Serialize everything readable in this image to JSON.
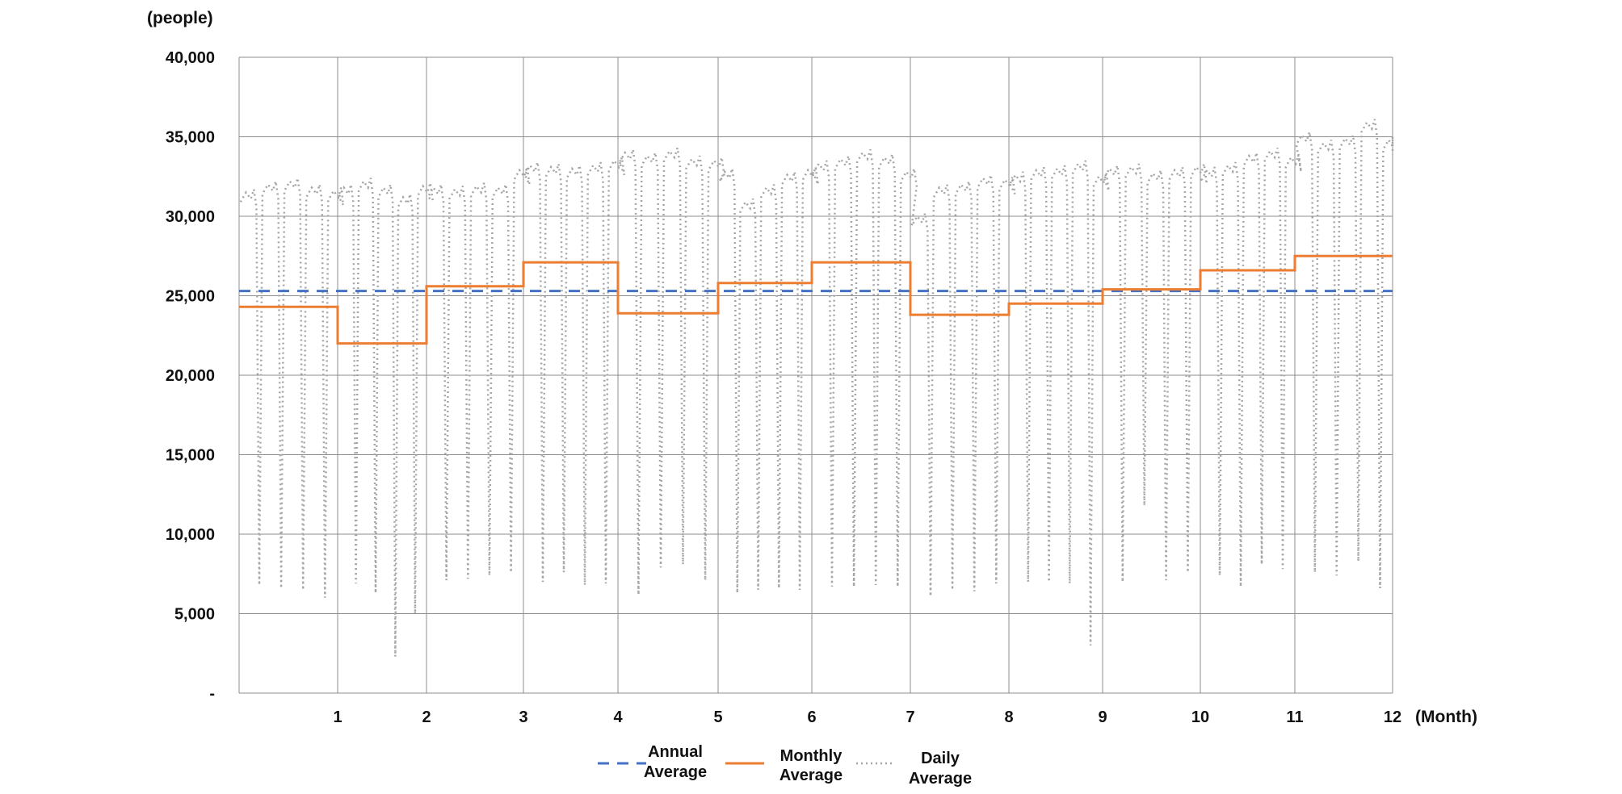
{
  "chart_data": {
    "type": "line",
    "y_unit_label": "(people)",
    "x_unit_label": "(Month)",
    "xlim": [
      0,
      12
    ],
    "ylim": [
      0,
      40000
    ],
    "x_ticks": [
      1,
      2,
      3,
      4,
      5,
      6,
      7,
      8,
      9,
      10,
      11,
      12
    ],
    "x_tick_labels": [
      "1",
      "2",
      "3",
      "4",
      "5",
      "6",
      "7",
      "8",
      "9",
      "10",
      "11",
      "12"
    ],
    "y_ticks": [
      0,
      5000,
      10000,
      15000,
      20000,
      25000,
      30000,
      35000,
      40000
    ],
    "y_tick_labels": [
      "-",
      "5,000",
      "10,000",
      "15,000",
      "20,000",
      "25,000",
      "30,000",
      "35,000",
      "40,000"
    ],
    "grid": true,
    "legend_position": "bottom",
    "series": [
      {
        "name": "Annual Average",
        "style": "dashed",
        "color": "#4472C4",
        "value": 25300
      },
      {
        "name": "Monthly Average",
        "style": "step",
        "color": "#ED7D31",
        "months": [
          1,
          2,
          3,
          4,
          5,
          6,
          7,
          8,
          9,
          10,
          11,
          12
        ],
        "values": [
          24300,
          22000,
          25600,
          27100,
          23900,
          25800,
          27100,
          23800,
          24500,
          25400,
          26600,
          27500
        ]
      },
      {
        "name": "Daily Average",
        "style": "dotted",
        "color": "#A6A6A6",
        "month_daily_profile": [
          {
            "month": 1,
            "weekday": [
              31500,
              32000,
              32200,
              31800,
              31600
            ],
            "weekend_low": [
              6800,
              6600,
              6500,
              6000
            ]
          },
          {
            "month": 2,
            "weekday": [
              31800,
              32200,
              31800,
              31200,
              31900
            ],
            "weekend_low": [
              6900,
              6300,
              2300,
              5000
            ]
          },
          {
            "month": 3,
            "weekday": [
              31800,
              31700,
              31900,
              31800,
              32900
            ],
            "weekend_low": [
              7100,
              7200,
              7400,
              7600
            ]
          },
          {
            "month": 4,
            "weekday": [
              33200,
              33100,
              33000,
              33200,
              33500
            ],
            "weekend_low": [
              7000,
              7600,
              6800,
              6900
            ]
          },
          {
            "month": 5,
            "weekday": [
              34000,
              33800,
              34100,
              33600,
              33500
            ],
            "weekend_low": [
              6200,
              7900,
              8100,
              7100
            ]
          },
          {
            "month": 6,
            "weekday": [
              32800,
              30900,
              31800,
              32600,
              32900
            ],
            "weekend_low": [
              6300,
              6500,
              6600,
              6500
            ]
          },
          {
            "month": 7,
            "weekday": [
              33300,
              33600,
              34000,
              33700,
              32800
            ],
            "weekend_low": [
              6700,
              6700,
              6800,
              6700
            ]
          },
          {
            "month": 8,
            "weekday": [
              30000,
              31800,
              32000,
              32400,
              32300
            ],
            "weekend_low": [
              6100,
              6500,
              6400,
              6900
            ]
          },
          {
            "month": 9,
            "weekday": [
              32600,
              32900,
              33000,
              33300,
              32500
            ],
            "weekend_low": [
              7000,
              7000,
              6900,
              3000
            ]
          },
          {
            "month": 10,
            "weekday": [
              33000,
              33100,
              32700,
              32900,
              33100
            ],
            "weekend_low": [
              7000,
              11800,
              7100,
              7600
            ]
          },
          {
            "month": 11,
            "weekday": [
              32900,
              33200,
              33800,
              34100,
              33700
            ],
            "weekend_low": [
              7400,
              6700,
              8100,
              7800
            ]
          },
          {
            "month": 12,
            "weekday": [
              35100,
              34600,
              34900,
              35900,
              34800
            ],
            "weekend_low": [
              7600,
              7400,
              8300,
              6600
            ]
          }
        ]
      }
    ]
  },
  "legend": {
    "annual_line1": "Annual",
    "annual_line2": "Average",
    "monthly_line1": "Monthly",
    "monthly_line2": "Average",
    "daily_line1": "Daily",
    "daily_line2": "Average"
  }
}
